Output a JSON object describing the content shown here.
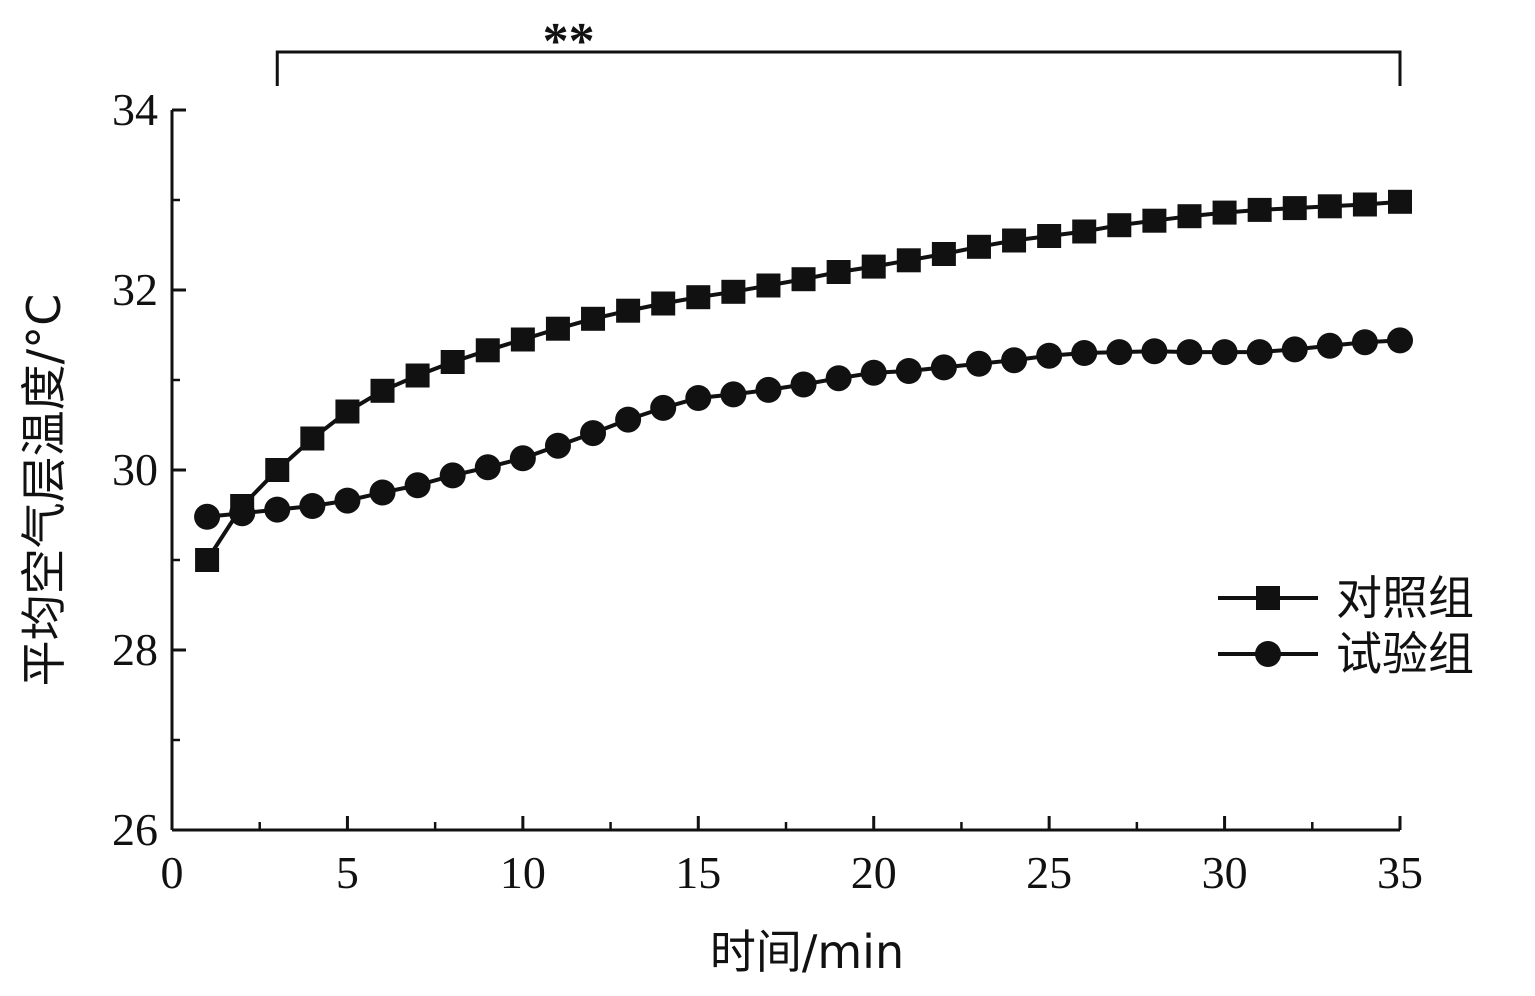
{
  "chart_data": {
    "type": "line",
    "xlabel": "时间/min",
    "ylabel": "平均空气层温度/°C",
    "xlim": [
      0,
      35
    ],
    "ylim": [
      26,
      34
    ],
    "xticks": [
      0,
      5,
      10,
      15,
      20,
      25,
      30,
      35
    ],
    "yticks": [
      26,
      28,
      30,
      32,
      34
    ],
    "grid": false,
    "legend_position": "right",
    "x": [
      1,
      2,
      3,
      4,
      5,
      6,
      7,
      8,
      9,
      10,
      11,
      12,
      13,
      14,
      15,
      16,
      17,
      18,
      19,
      20,
      21,
      22,
      23,
      24,
      25,
      26,
      27,
      28,
      29,
      30,
      31,
      32,
      33,
      34,
      35
    ],
    "series": [
      {
        "name": "对照组",
        "marker": "square",
        "color": "#111111",
        "values": [
          29.0,
          29.6,
          30.0,
          30.35,
          30.65,
          30.88,
          31.05,
          31.2,
          31.33,
          31.45,
          31.57,
          31.68,
          31.77,
          31.85,
          31.92,
          31.98,
          32.05,
          32.12,
          32.2,
          32.26,
          32.33,
          32.4,
          32.48,
          32.55,
          32.6,
          32.65,
          32.72,
          32.77,
          32.82,
          32.86,
          32.89,
          32.91,
          32.93,
          32.95,
          32.98
        ]
      },
      {
        "name": "试验组",
        "marker": "circle",
        "color": "#111111",
        "values": [
          29.48,
          29.52,
          29.56,
          29.6,
          29.66,
          29.75,
          29.83,
          29.94,
          30.03,
          30.13,
          30.27,
          30.41,
          30.56,
          30.69,
          30.8,
          30.84,
          30.89,
          30.95,
          31.02,
          31.08,
          31.1,
          31.14,
          31.18,
          31.22,
          31.27,
          31.3,
          31.31,
          31.32,
          31.31,
          31.31,
          31.31,
          31.34,
          31.38,
          31.42,
          31.44
        ]
      }
    ],
    "annotation": {
      "text": "**",
      "x_start": 3,
      "x_end": 35
    }
  }
}
